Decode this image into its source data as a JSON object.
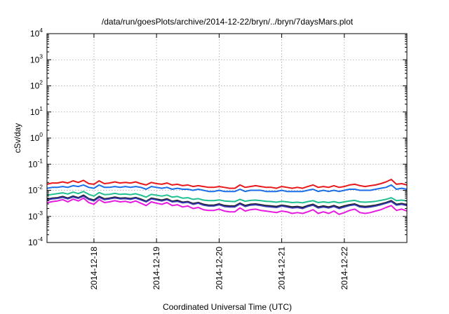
{
  "chart_data": {
    "type": "line",
    "title": "/data/run/goesPlots/archive/2014-12-22/bryn/../bryn/7daysMars.plot",
    "xlabel": "Coordinated Universal Time (UTC)",
    "ylabel": "cSv/day",
    "xlim": [
      "2014-12-17T06:00",
      "2014-12-23T00:00"
    ],
    "ylim": [
      0.0001,
      10000
    ],
    "yscale": "log",
    "grid": true,
    "x_ticks": [
      "2014-12-18",
      "2014-12-19",
      "2014-12-20",
      "2014-12-21",
      "2014-12-22"
    ],
    "y_ticks": [
      {
        "base": "10",
        "exp": "-4",
        "value": 0.0001
      },
      {
        "base": "10",
        "exp": "-3",
        "value": 0.001
      },
      {
        "base": "10",
        "exp": "-2",
        "value": 0.01
      },
      {
        "base": "10",
        "exp": "-1",
        "value": 0.1
      },
      {
        "base": "10",
        "exp": "0",
        "value": 1
      },
      {
        "base": "10",
        "exp": "1",
        "value": 10
      },
      {
        "base": "10",
        "exp": "2",
        "value": 100
      },
      {
        "base": "10",
        "exp": "3",
        "value": 1000
      },
      {
        "base": "10",
        "exp": "4",
        "value": 10000
      }
    ],
    "x": [
      "2014-12-17T06:00",
      "2014-12-17T08:00",
      "2014-12-17T10:00",
      "2014-12-17T12:00",
      "2014-12-17T14:00",
      "2014-12-17T16:00",
      "2014-12-17T18:00",
      "2014-12-17T20:00",
      "2014-12-17T22:00",
      "2014-12-18T00:00",
      "2014-12-18T02:00",
      "2014-12-18T04:00",
      "2014-12-18T06:00",
      "2014-12-18T08:00",
      "2014-12-18T10:00",
      "2014-12-18T12:00",
      "2014-12-18T14:00",
      "2014-12-18T16:00",
      "2014-12-18T18:00",
      "2014-12-18T20:00",
      "2014-12-18T22:00",
      "2014-12-19T00:00",
      "2014-12-19T02:00",
      "2014-12-19T04:00",
      "2014-12-19T06:00",
      "2014-12-19T08:00",
      "2014-12-19T10:00",
      "2014-12-19T12:00",
      "2014-12-19T14:00",
      "2014-12-19T16:00",
      "2014-12-19T18:00",
      "2014-12-19T20:00",
      "2014-12-19T22:00",
      "2014-12-20T00:00",
      "2014-12-20T02:00",
      "2014-12-20T04:00",
      "2014-12-20T06:00",
      "2014-12-20T08:00",
      "2014-12-20T10:00",
      "2014-12-20T12:00",
      "2014-12-20T14:00",
      "2014-12-20T16:00",
      "2014-12-20T18:00",
      "2014-12-20T20:00",
      "2014-12-20T22:00",
      "2014-12-21T00:00",
      "2014-12-21T02:00",
      "2014-12-21T04:00",
      "2014-12-21T06:00",
      "2014-12-21T08:00",
      "2014-12-21T10:00",
      "2014-12-21T12:00",
      "2014-12-21T14:00",
      "2014-12-21T16:00",
      "2014-12-21T18:00",
      "2014-12-21T20:00",
      "2014-12-21T22:00",
      "2014-12-22T00:00",
      "2014-12-22T02:00",
      "2014-12-22T04:00",
      "2014-12-22T06:00",
      "2014-12-22T08:00",
      "2014-12-22T10:00",
      "2014-12-22T12:00",
      "2014-12-22T14:00",
      "2014-12-22T16:00",
      "2014-12-22T18:00",
      "2014-12-22T20:00",
      "2014-12-22T22:00",
      "2014-12-23T00:00"
    ],
    "series": [
      {
        "color": "#e8181c",
        "values": [
          0.017,
          0.019,
          0.019,
          0.021,
          0.019,
          0.023,
          0.02,
          0.024,
          0.018,
          0.017,
          0.023,
          0.018,
          0.019,
          0.021,
          0.019,
          0.02,
          0.019,
          0.021,
          0.018,
          0.016,
          0.02,
          0.018,
          0.017,
          0.019,
          0.016,
          0.017,
          0.015,
          0.016,
          0.014,
          0.015,
          0.014,
          0.013,
          0.013,
          0.014,
          0.013,
          0.012,
          0.012,
          0.016,
          0.013,
          0.014,
          0.015,
          0.014,
          0.013,
          0.013,
          0.012,
          0.014,
          0.013,
          0.012,
          0.013,
          0.012,
          0.014,
          0.016,
          0.013,
          0.014,
          0.013,
          0.015,
          0.013,
          0.014,
          0.016,
          0.017,
          0.015,
          0.014,
          0.015,
          0.016,
          0.018,
          0.021,
          0.026,
          0.017,
          0.018,
          0.016
        ]
      },
      {
        "color": "#1a6fe8",
        "values": [
          0.012,
          0.013,
          0.013,
          0.014,
          0.013,
          0.015,
          0.014,
          0.016,
          0.013,
          0.012,
          0.016,
          0.013,
          0.013,
          0.014,
          0.013,
          0.014,
          0.013,
          0.014,
          0.013,
          0.011,
          0.014,
          0.013,
          0.012,
          0.013,
          0.011,
          0.012,
          0.011,
          0.011,
          0.01,
          0.011,
          0.01,
          0.009,
          0.009,
          0.01,
          0.009,
          0.009,
          0.009,
          0.011,
          0.009,
          0.01,
          0.01,
          0.01,
          0.009,
          0.009,
          0.009,
          0.01,
          0.009,
          0.009,
          0.009,
          0.009,
          0.01,
          0.011,
          0.009,
          0.01,
          0.009,
          0.01,
          0.009,
          0.01,
          0.011,
          0.011,
          0.01,
          0.01,
          0.01,
          0.011,
          0.012,
          0.013,
          0.016,
          0.011,
          0.012,
          0.011
        ]
      },
      {
        "color": "#20c090",
        "values": [
          0.0065,
          0.007,
          0.0075,
          0.008,
          0.0072,
          0.0085,
          0.0075,
          0.009,
          0.007,
          0.006,
          0.0082,
          0.0068,
          0.007,
          0.0076,
          0.007,
          0.0072,
          0.0068,
          0.0074,
          0.0065,
          0.0055,
          0.007,
          0.0065,
          0.006,
          0.0066,
          0.0055,
          0.0058,
          0.005,
          0.0052,
          0.0045,
          0.0048,
          0.0042,
          0.004,
          0.004,
          0.0043,
          0.0039,
          0.0038,
          0.0037,
          0.0045,
          0.0038,
          0.0041,
          0.0042,
          0.004,
          0.0038,
          0.0037,
          0.0035,
          0.0038,
          0.0036,
          0.0034,
          0.0035,
          0.0033,
          0.0037,
          0.004,
          0.0034,
          0.0036,
          0.0034,
          0.0037,
          0.0033,
          0.0036,
          0.0039,
          0.0041,
          0.0036,
          0.0035,
          0.0036,
          0.0038,
          0.0041,
          0.0045,
          0.0052,
          0.004,
          0.0042,
          0.0039
        ]
      },
      {
        "color": "#1a1a1a",
        "values": [
          0.0045,
          0.005,
          0.0052,
          0.0058,
          0.005,
          0.006,
          0.0052,
          0.0065,
          0.0048,
          0.0042,
          0.0058,
          0.0047,
          0.005,
          0.0055,
          0.005,
          0.0051,
          0.0048,
          0.0053,
          0.0046,
          0.0038,
          0.005,
          0.0046,
          0.0042,
          0.0047,
          0.0038,
          0.0041,
          0.0035,
          0.0037,
          0.0031,
          0.0034,
          0.0029,
          0.0027,
          0.0027,
          0.003,
          0.0026,
          0.0025,
          0.0025,
          0.0032,
          0.0026,
          0.0029,
          0.003,
          0.0028,
          0.0026,
          0.0025,
          0.0024,
          0.0027,
          0.0025,
          0.0023,
          0.0024,
          0.0022,
          0.0026,
          0.0029,
          0.0023,
          0.0025,
          0.0023,
          0.0026,
          0.0022,
          0.0025,
          0.0028,
          0.003,
          0.0025,
          0.0024,
          0.0025,
          0.0027,
          0.003,
          0.0034,
          0.004,
          0.0029,
          0.0031,
          0.0028
        ]
      },
      {
        "color": "#3838b0",
        "values": [
          0.0042,
          0.0047,
          0.0049,
          0.0054,
          0.0047,
          0.0056,
          0.0049,
          0.006,
          0.0045,
          0.0039,
          0.0054,
          0.0044,
          0.0047,
          0.0051,
          0.0047,
          0.0048,
          0.0045,
          0.005,
          0.0043,
          0.0036,
          0.0047,
          0.0043,
          0.0039,
          0.0044,
          0.0036,
          0.0038,
          0.0033,
          0.0035,
          0.0029,
          0.0032,
          0.0027,
          0.0025,
          0.0025,
          0.0028,
          0.0024,
          0.0023,
          0.0023,
          0.003,
          0.0024,
          0.0027,
          0.0028,
          0.0026,
          0.0024,
          0.0023,
          0.0022,
          0.0025,
          0.0023,
          0.0021,
          0.0022,
          0.002,
          0.0024,
          0.0027,
          0.0021,
          0.0023,
          0.0021,
          0.0024,
          0.002,
          0.0023,
          0.0026,
          0.0028,
          0.0023,
          0.0022,
          0.0023,
          0.0025,
          0.0028,
          0.0032,
          0.0037,
          0.0027,
          0.0029,
          0.0026
        ]
      },
      {
        "color": "#e81ae0",
        "values": [
          0.0033,
          0.0037,
          0.0039,
          0.0044,
          0.0036,
          0.0046,
          0.0039,
          0.005,
          0.0034,
          0.0029,
          0.0044,
          0.0034,
          0.0036,
          0.004,
          0.0036,
          0.0038,
          0.0034,
          0.0039,
          0.0032,
          0.0026,
          0.0036,
          0.0032,
          0.0029,
          0.0034,
          0.0026,
          0.0028,
          0.0023,
          0.0025,
          0.002,
          0.0022,
          0.0018,
          0.0017,
          0.0017,
          0.0019,
          0.0016,
          0.0015,
          0.0015,
          0.0021,
          0.0016,
          0.0018,
          0.0019,
          0.0017,
          0.0016,
          0.0015,
          0.0014,
          0.0016,
          0.0015,
          0.0013,
          0.0014,
          0.0013,
          0.0015,
          0.0018,
          0.0013,
          0.0015,
          0.0013,
          0.0016,
          0.0012,
          0.0014,
          0.0017,
          0.0019,
          0.0014,
          0.0013,
          0.0014,
          0.0016,
          0.0018,
          0.0022,
          0.0026,
          0.0017,
          0.0019,
          0.0016
        ]
      }
    ]
  }
}
